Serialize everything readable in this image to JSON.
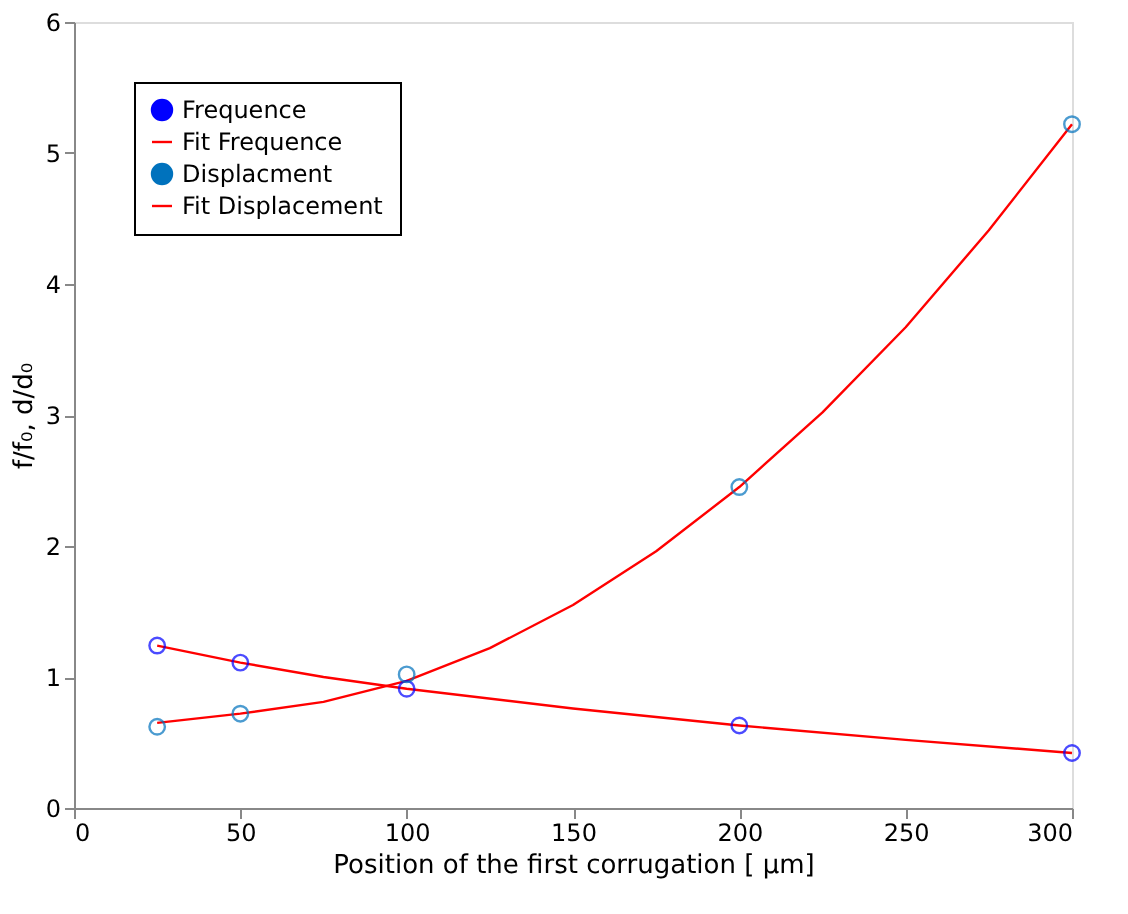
{
  "chart_data": {
    "type": "scatter",
    "xlabel": "Position of the first corrugation [ μm]",
    "ylabel": "f/f₀, d/d₀",
    "xlim": [
      0,
      300
    ],
    "ylim": [
      0,
      6
    ],
    "xticks": [
      0,
      50,
      100,
      150,
      200,
      250,
      300
    ],
    "yticks": [
      0,
      1,
      2,
      3,
      4,
      5,
      6
    ],
    "grid": false,
    "legend": "top left",
    "series": [
      {
        "name": "Frequence",
        "marker": "circle",
        "color": "#0000ff",
        "x": [
          25,
          50,
          100,
          200,
          300
        ],
        "values": [
          1.24,
          1.11,
          0.91,
          0.63,
          0.42
        ]
      },
      {
        "name": "Fit Frequence",
        "type": "line",
        "line_style": "solid",
        "color": "#ff0000",
        "x": [
          25,
          50,
          75,
          100,
          150,
          200,
          250,
          300
        ],
        "values": [
          1.24,
          1.11,
          1.0,
          0.91,
          0.76,
          0.63,
          0.52,
          0.42
        ]
      },
      {
        "name": "Displacment",
        "marker": "circle",
        "color": "#0072bd",
        "x": [
          25,
          50,
          100,
          200,
          300
        ],
        "values": [
          0.62,
          0.72,
          1.02,
          2.45,
          5.22
        ]
      },
      {
        "name": "Fit Displacement",
        "type": "line",
        "line_style": "solid",
        "color": "#ff0000",
        "x": [
          25,
          50,
          75,
          100,
          125,
          150,
          175,
          200,
          225,
          250,
          275,
          300
        ],
        "values": [
          0.65,
          0.72,
          0.81,
          0.97,
          1.22,
          1.55,
          1.96,
          2.45,
          3.02,
          3.67,
          4.41,
          5.22
        ]
      }
    ]
  }
}
